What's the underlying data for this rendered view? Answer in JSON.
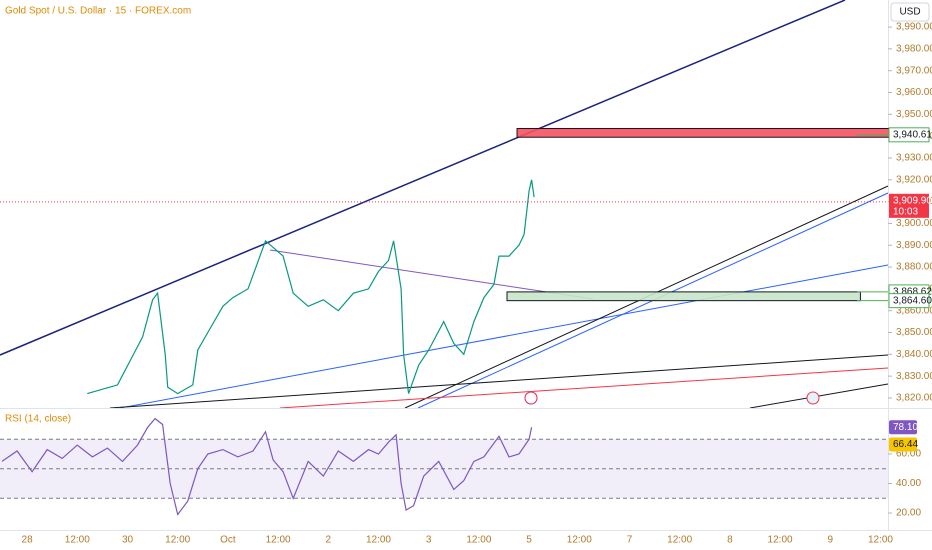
{
  "chart_data": [
    {
      "type": "line",
      "title": "Gold Spot / U.S. Dollar · 15 · FOREX.com",
      "currency": "USD",
      "color": "#089981",
      "x": [
        1.2,
        1.8,
        2.3,
        2.5,
        2.6,
        2.75,
        2.8,
        3.0,
        3.3,
        3.4,
        3.6,
        3.9,
        4.1,
        4.4,
        4.75,
        4.85,
        5.1,
        5.3,
        5.6,
        5.9,
        6.2,
        6.5,
        6.8,
        7.0,
        7.2,
        7.3,
        7.45,
        7.5,
        7.6,
        7.8,
        8.0,
        8.3,
        8.5,
        8.7,
        8.9,
        9.1,
        9.3,
        9.4,
        9.6,
        9.8,
        9.9,
        10.0,
        10.05,
        10.1
      ],
      "values": [
        3822,
        3826,
        3848,
        3865,
        3868,
        3840,
        3825,
        3822,
        3826,
        3842,
        3850,
        3862,
        3866,
        3870,
        3892,
        3890,
        3885,
        3868,
        3862,
        3865,
        3860,
        3868,
        3870,
        3878,
        3883,
        3892,
        3870,
        3840,
        3822,
        3835,
        3842,
        3855,
        3845,
        3840,
        3855,
        3866,
        3872,
        3885,
        3885,
        3890,
        3895,
        3915,
        3920,
        3912
      ],
      "xlim": [
        -0.54,
        17.15
      ],
      "xticks": [
        {
          "value": 0,
          "label": "28"
        },
        {
          "value": 1,
          "label": "12:00"
        },
        {
          "value": 2,
          "label": "30"
        },
        {
          "value": 3,
          "label": "12:00"
        },
        {
          "value": 4,
          "label": "Oct"
        },
        {
          "value": 5,
          "label": "12:00"
        },
        {
          "value": 6,
          "label": "2"
        },
        {
          "value": 7,
          "label": "12:00"
        },
        {
          "value": 8,
          "label": "3"
        },
        {
          "value": 9,
          "label": "12:00"
        },
        {
          "value": 10,
          "label": "5"
        },
        {
          "value": 11,
          "label": "12:00"
        },
        {
          "value": 12,
          "label": "7"
        },
        {
          "value": 13,
          "label": "12:00"
        },
        {
          "value": 14,
          "label": "8"
        },
        {
          "value": 15,
          "label": "12:00"
        },
        {
          "value": 16,
          "label": "9"
        },
        {
          "value": 17,
          "label": "12:00"
        }
      ],
      "ylim": [
        3815.4,
        4002.4
      ],
      "yticks": [
        {
          "value": 3820,
          "label": "3,820.00"
        },
        {
          "value": 3830,
          "label": "3,830.00"
        },
        {
          "value": 3840,
          "label": "3,840.00"
        },
        {
          "value": 3850,
          "label": "3,850.00"
        },
        {
          "value": 3860,
          "label": "3,860.00"
        },
        {
          "value": 3870,
          "label": "3,870.00"
        },
        {
          "value": 3880,
          "label": "3,880.00"
        },
        {
          "value": 3890,
          "label": "3,890.00"
        },
        {
          "value": 3900,
          "label": "3,900.00"
        },
        {
          "value": 3910,
          "label": "3,910.00"
        },
        {
          "value": 3920,
          "label": "3,920.00"
        },
        {
          "value": 3930,
          "label": "3,930.00"
        },
        {
          "value": 3940,
          "label": "3,940.00"
        },
        {
          "value": 3950,
          "label": "3,950.00"
        },
        {
          "value": 3960,
          "label": "3,960.00"
        },
        {
          "value": 3970,
          "label": "3,970.00"
        },
        {
          "value": 3980,
          "label": "3,980.00"
        },
        {
          "value": 3990,
          "label": "3,990.00"
        }
      ],
      "last_price": {
        "value": 3909.9,
        "label": "3,909.90",
        "countdown": "10:03",
        "color": "#f23645"
      },
      "zones": [
        {
          "low": 3939.5,
          "high": 3943.5,
          "x": [
            9.76,
            17.28
          ],
          "color": "#f7525f"
        },
        {
          "low": 3864.6,
          "high": 3868.62,
          "x": [
            9.56,
            16.6
          ],
          "color": "#c8e6c9"
        }
      ],
      "levels": [
        {
          "value": 3940.61,
          "label": "3,940.61",
          "color": "#4caf50"
        },
        {
          "value": 3868.62,
          "label": "3,868.62",
          "color": "#4caf50"
        },
        {
          "value": 3864.6,
          "label": "3,864.60",
          "color": "#4caf50"
        }
      ]
    },
    {
      "type": "line",
      "title": "RSI (14, close)",
      "color": "#7e57c2",
      "x": [
        -0.5,
        -0.2,
        0.1,
        0.4,
        0.7,
        1.0,
        1.3,
        1.6,
        1.9,
        2.2,
        2.4,
        2.55,
        2.7,
        2.85,
        3.0,
        3.2,
        3.4,
        3.6,
        3.9,
        4.2,
        4.5,
        4.75,
        4.9,
        5.1,
        5.3,
        5.6,
        5.9,
        6.2,
        6.5,
        6.8,
        7.0,
        7.2,
        7.35,
        7.45,
        7.55,
        7.7,
        7.9,
        8.2,
        8.5,
        8.7,
        8.9,
        9.1,
        9.4,
        9.6,
        9.8,
        10.0,
        10.05
      ],
      "values": [
        55,
        62,
        48,
        63,
        57,
        66,
        58,
        64,
        55,
        66,
        78,
        84,
        80,
        40,
        19,
        28,
        50,
        60,
        63,
        58,
        62,
        75,
        56,
        48,
        30,
        55,
        45,
        62,
        55,
        63,
        60,
        68,
        73,
        40,
        22,
        25,
        45,
        55,
        36,
        42,
        55,
        58,
        72,
        58,
        60,
        70,
        78.1
      ],
      "ylim": [
        8.5,
        89.8
      ],
      "yticks": [
        {
          "value": 20,
          "label": "20.00"
        },
        {
          "value": 40,
          "label": "40.00"
        },
        {
          "value": 60,
          "label": "60.00"
        }
      ],
      "bands": [
        30,
        50,
        70
      ],
      "last": {
        "value": 78.1,
        "label": "78.10",
        "color": "#7e57c2"
      },
      "ma": {
        "value": 66.44,
        "label": "66.44",
        "color": "#f7c600"
      }
    }
  ]
}
